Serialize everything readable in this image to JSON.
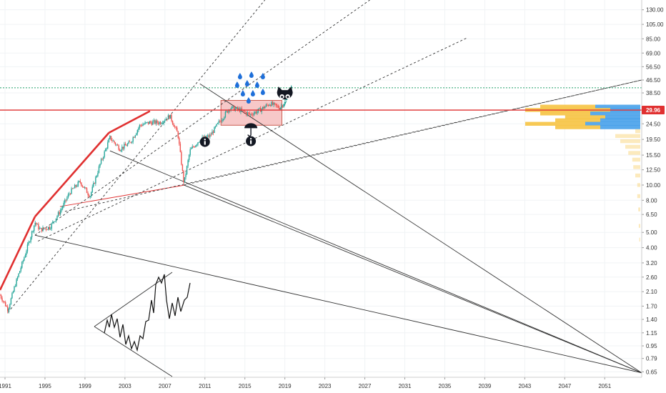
{
  "chart_data": {
    "type": "line",
    "title": "",
    "xlabel": "",
    "ylabel": "",
    "scale": "log",
    "grid": true,
    "xlim": [
      1990.5,
      2054.7
    ],
    "ylim": [
      0.6,
      150
    ],
    "x_ticks": [
      "1991",
      "1995",
      "1999",
      "2003",
      "2007",
      "2011",
      "2015",
      "2019",
      "2023",
      "2027",
      "2031",
      "2035",
      "2039",
      "2043",
      "2047",
      "2051"
    ],
    "y_ticks": [
      "0.65",
      "0.79",
      "0.95",
      "1.15",
      "1.40",
      "1.70",
      "2.10",
      "2.60",
      "3.20",
      "4.00",
      "5.00",
      "6.50",
      "8.00",
      "10.00",
      "12.50",
      "15.50",
      "19.50",
      "24.50",
      "30.00",
      "38.50",
      "46.50",
      "56.50",
      "69.00",
      "85.00",
      "105.00",
      "130.00"
    ],
    "current_price": "29.96",
    "reference_price": 41.5,
    "price_series_key_points": [
      {
        "x": 1990.5,
        "y": 2.0
      },
      {
        "x": 1991.3,
        "y": 1.62
      },
      {
        "x": 1992.0,
        "y": 2.3
      },
      {
        "x": 1993.0,
        "y": 3.6
      },
      {
        "x": 1994.0,
        "y": 5.8
      },
      {
        "x": 1994.5,
        "y": 5.2
      },
      {
        "x": 1995.5,
        "y": 5.4
      },
      {
        "x": 1996.5,
        "y": 6.8
      },
      {
        "x": 1997.5,
        "y": 9.0
      },
      {
        "x": 1998.5,
        "y": 10.5
      },
      {
        "x": 1999.5,
        "y": 8.5
      },
      {
        "x": 2000.5,
        "y": 13.5
      },
      {
        "x": 2001.5,
        "y": 20.0
      },
      {
        "x": 2002.5,
        "y": 17.0
      },
      {
        "x": 2003.5,
        "y": 18.5
      },
      {
        "x": 2004.5,
        "y": 24.0
      },
      {
        "x": 2005.5,
        "y": 25.0
      },
      {
        "x": 2006.5,
        "y": 25.0
      },
      {
        "x": 2007.5,
        "y": 27.5
      },
      {
        "x": 2008.3,
        "y": 21.0
      },
      {
        "x": 2008.9,
        "y": 10.2
      },
      {
        "x": 2009.5,
        "y": 16.5
      },
      {
        "x": 2010.5,
        "y": 19.5
      },
      {
        "x": 2011.5,
        "y": 20.5
      },
      {
        "x": 2012.5,
        "y": 25.5
      },
      {
        "x": 2013.5,
        "y": 31.0
      },
      {
        "x": 2014.5,
        "y": 30.0
      },
      {
        "x": 2015.5,
        "y": 28.0
      },
      {
        "x": 2016.5,
        "y": 30.0
      },
      {
        "x": 2017.5,
        "y": 33.0
      },
      {
        "x": 2018.5,
        "y": 31.0
      },
      {
        "x": 2019.0,
        "y": 34.0
      },
      {
        "x": 2019.7,
        "y": 42.0
      }
    ],
    "trend_lines": [
      {
        "style": "solid",
        "color": "#e03030",
        "points": [
          [
            1990.5,
            2.15
          ],
          [
            1994.0,
            6.3
          ]
        ]
      },
      {
        "style": "solid",
        "color": "#e03030",
        "points": [
          [
            1994.0,
            6.3
          ],
          [
            2001.4,
            21.5
          ]
        ]
      },
      {
        "style": "solid",
        "color": "#e03030",
        "points": [
          [
            2001.4,
            21.5
          ],
          [
            2005.5,
            29.5
          ]
        ]
      },
      {
        "style": "solid",
        "color": "#e03030",
        "points": [
          [
            1996.5,
            7.3
          ],
          [
            2009.0,
            10.0
          ]
        ]
      },
      {
        "style": "solid",
        "color": "#333333",
        "points": [
          [
            1994.0,
            4.8
          ],
          [
            2054.7,
            0.64
          ]
        ]
      },
      {
        "style": "solid",
        "color": "#333333",
        "points": [
          [
            2001.5,
            16.5
          ],
          [
            2054.7,
            0.64
          ]
        ]
      },
      {
        "style": "solid",
        "color": "#333333",
        "points": [
          [
            2010.5,
            44.0
          ],
          [
            2054.7,
            0.64
          ]
        ]
      },
      {
        "style": "solid",
        "color": "#333333",
        "points": [
          [
            2008.9,
            10.0
          ],
          [
            2054.7,
            0.64
          ]
        ]
      },
      {
        "style": "dashed",
        "color": "#333333",
        "points": [
          [
            1991.3,
            1.55
          ],
          [
            2017.0,
            150.0
          ]
        ]
      },
      {
        "style": "dashed",
        "color": "#333333",
        "points": [
          [
            1994.0,
            4.8
          ],
          [
            2027.5,
            150.0
          ]
        ]
      },
      {
        "style": "dashed",
        "color": "#333333",
        "points": [
          [
            1994.3,
            4.4
          ],
          [
            2037.2,
            86.0
          ]
        ]
      },
      {
        "style": "dashed",
        "color": "#333333",
        "points": [
          [
            1997.0,
            6.8
          ],
          [
            2054.7,
            46.5
          ]
        ]
      },
      {
        "style": "dashed",
        "color": "#333333",
        "points": [
          [
            2008.9,
            10.0
          ],
          [
            2054.7,
            46.5
          ]
        ]
      }
    ],
    "bands": [
      {
        "color": "#e03030",
        "value": 29.96,
        "role": "current price line"
      },
      {
        "color": "#22a06b",
        "value": 41.5,
        "role": "dotted reference line"
      }
    ],
    "zones": [
      {
        "color": "#f4b6b6",
        "x": [
          2012.6,
          2018.7
        ],
        "y": [
          24.0,
          34.5
        ]
      }
    ],
    "annotations": [
      {
        "kind": "info-icon",
        "x": 2011.0,
        "y": 18.8
      },
      {
        "kind": "info-icon",
        "x": 2015.6,
        "y": 19.0
      },
      {
        "kind": "umbrella-icon",
        "x": 2015.6,
        "y": 23.0
      },
      {
        "kind": "raindrops",
        "x": 2015.8,
        "y": 41.0
      },
      {
        "kind": "cat-face-icon",
        "x": 2019.0,
        "y": 36.5
      }
    ],
    "volume_profile": [
      {
        "price": 31.5,
        "yellow": 5.5,
        "blue": 4.5
      },
      {
        "price": 30.0,
        "yellow": 8.5,
        "blue": 3.0
      },
      {
        "price": 28.5,
        "yellow": 5.0,
        "blue": 5.0
      },
      {
        "price": 27.0,
        "yellow": 4.0,
        "blue": 3.5
      },
      {
        "price": 25.8,
        "yellow": 4.5,
        "blue": 4.0
      },
      {
        "price": 24.5,
        "yellow": 6.0,
        "blue": 5.5
      },
      {
        "price": 23.3,
        "yellow": 4.5,
        "blue": 4.0
      },
      {
        "price": 22.0,
        "yellow": 0.5,
        "blue": 0.0
      },
      {
        "price": 20.5,
        "yellow": 2.5,
        "blue": 0.0
      },
      {
        "price": 19.0,
        "yellow": 2.0,
        "blue": 0.0
      },
      {
        "price": 17.5,
        "yellow": 1.5,
        "blue": 0.0
      },
      {
        "price": 16.0,
        "yellow": 1.2,
        "blue": 0.0
      },
      {
        "price": 14.5,
        "yellow": 0.8,
        "blue": 0.0
      },
      {
        "price": 13.0,
        "yellow": 0.7,
        "blue": 0.0
      },
      {
        "price": 11.5,
        "yellow": 0.5,
        "blue": 0.0
      },
      {
        "price": 10.0,
        "yellow": 0.3,
        "blue": 0.0
      },
      {
        "price": 8.5,
        "yellow": 0.3,
        "blue": 0.0
      },
      {
        "price": 7.0,
        "yellow": 0.2,
        "blue": 0.0
      },
      {
        "price": 5.5,
        "yellow": 0.15,
        "blue": 0.0
      },
      {
        "price": 4.5,
        "yellow": 0.1,
        "blue": 0.0
      }
    ],
    "colors": {
      "candle_up": "#26a69a",
      "candle_down": "#ef5350",
      "trendline_red": "#e03030",
      "zone_fill": "#f4b6b6",
      "ref_green": "#22a06b",
      "profile_yellow": "#f6c343",
      "profile_blue": "#3d9be9"
    }
  }
}
